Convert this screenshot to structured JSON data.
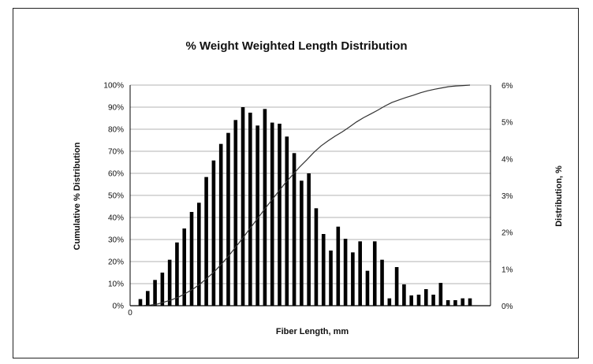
{
  "chart_data": {
    "type": "bar",
    "title": "% Weight Weighted Length Distribution",
    "xlabel": "Fiber Length, mm",
    "ylabel_left": "Cumulative % Distribution",
    "ylabel_right": "Distribution, %",
    "x_tick_labels": [
      "0"
    ],
    "left_axis": {
      "min": 0,
      "max": 100,
      "ticks": [
        "0%",
        "10%",
        "20%",
        "30%",
        "40%",
        "50%",
        "60%",
        "70%",
        "80%",
        "90%",
        "100%"
      ]
    },
    "right_axis": {
      "min": 0,
      "max": 6,
      "ticks": [
        "0%",
        "1%",
        "2%",
        "3%",
        "4%",
        "5%",
        "6%"
      ]
    },
    "grid": true,
    "series": [
      {
        "type": "bar",
        "axis": "right",
        "values": [
          0.18,
          0.4,
          0.7,
          0.9,
          1.25,
          1.72,
          2.1,
          2.55,
          2.8,
          3.5,
          3.95,
          4.4,
          4.7,
          5.05,
          5.4,
          5.25,
          4.9,
          5.35,
          4.98,
          4.95,
          4.6,
          4.15,
          3.4,
          3.6,
          2.65,
          1.95,
          1.5,
          2.15,
          1.82,
          1.45,
          1.75,
          0.95,
          1.75,
          1.25,
          0.2,
          1.05,
          0.58,
          0.28,
          0.3,
          0.45,
          0.3,
          0.62,
          0.15,
          0.15,
          0.2,
          0.2
        ]
      },
      {
        "type": "line",
        "axis": "left",
        "values": [
          0,
          0.3,
          0.8,
          1.7,
          2.7,
          4.0,
          5.7,
          7.6,
          9.9,
          12.6,
          15.5,
          18.9,
          22.6,
          26.6,
          30.7,
          35.0,
          39.2,
          43.5,
          47.6,
          51.7,
          55.7,
          59.3,
          62.9,
          66.1,
          69.5,
          72.4,
          74.7,
          76.9,
          78.8,
          81.0,
          83.3,
          85.2,
          86.9,
          88.6,
          90.5,
          92.1,
          93.3,
          94.4,
          95.4,
          96.5,
          97.4,
          98.1,
          98.7,
          99.3,
          99.6,
          99.8,
          100
        ]
      }
    ]
  }
}
